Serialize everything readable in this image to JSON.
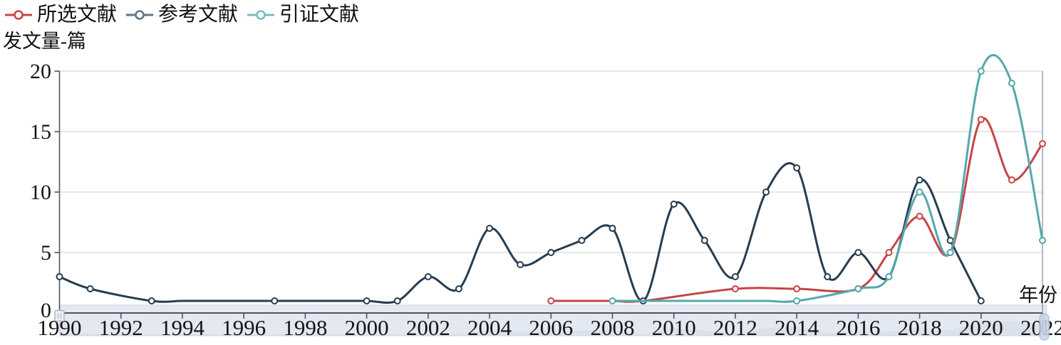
{
  "y_axis_title": "发文量-篇",
  "x_axis_title": "年份",
  "legend": {
    "items": [
      {
        "label": "所选文献",
        "marker_color": "#c84444"
      },
      {
        "label": "参考文献",
        "marker_color": "#5e7487"
      },
      {
        "label": "引证文献",
        "marker_color": "#79bcc1"
      }
    ]
  },
  "colors": {
    "red": "#c84444",
    "navy": "#263c50",
    "teal": "#55a7ad",
    "grid": "#d7dade",
    "axis": "#4f5560",
    "axis_light": "#8b919c",
    "text": "#141414",
    "band_fill": "#e4e8f0",
    "band_border": "#c9cfdc",
    "band_shadow": "#d4dae6",
    "handle_left_fill": "#eceff6",
    "handle_left_stroke": "#a9b2c4",
    "handle_right_fill": "#c9d5e7",
    "handle_right_stroke": "#a3b6d0"
  },
  "chart_data": {
    "type": "line",
    "title": "",
    "xlabel": "年份",
    "ylabel": "发文量-篇",
    "x_ticks": [
      1990,
      1992,
      1994,
      1996,
      1998,
      2000,
      2002,
      2004,
      2006,
      2008,
      2010,
      2012,
      2014,
      2016,
      2018,
      2020,
      2022
    ],
    "y_ticks": [
      0,
      5,
      10,
      15,
      20
    ],
    "xlim": [
      1990,
      2022
    ],
    "ylim": [
      0,
      20
    ],
    "grid": true,
    "smooth": true,
    "legend_position": "top-left",
    "series": [
      {
        "name": "所选文献",
        "color": "#c84444",
        "points": [
          {
            "year": 2006,
            "value": 1,
            "marker": true
          },
          {
            "year": 2007,
            "value": 1,
            "marker": false
          },
          {
            "year": 2008,
            "value": 1,
            "marker": false
          },
          {
            "year": 2009,
            "value": 1,
            "marker": false
          },
          {
            "year": 2012,
            "value": 2,
            "marker": true
          },
          {
            "year": 2014,
            "value": 2,
            "marker": true
          },
          {
            "year": 2016,
            "value": 2,
            "marker": true
          },
          {
            "year": 2017,
            "value": 5,
            "marker": true
          },
          {
            "year": 2018,
            "value": 8,
            "marker": true
          },
          {
            "year": 2019,
            "value": 5,
            "marker": true
          },
          {
            "year": 2020,
            "value": 16,
            "marker": true
          },
          {
            "year": 2021,
            "value": 11,
            "marker": true
          },
          {
            "year": 2022,
            "value": 14,
            "marker": true
          }
        ]
      },
      {
        "name": "参考文献",
        "color": "#263c50",
        "points": [
          {
            "year": 1990,
            "value": 3,
            "marker": true
          },
          {
            "year": 1991,
            "value": 2,
            "marker": true
          },
          {
            "year": 1993,
            "value": 1,
            "marker": true
          },
          {
            "year": 1994,
            "value": 1,
            "marker": false
          },
          {
            "year": 1995,
            "value": 1,
            "marker": false
          },
          {
            "year": 1996,
            "value": 1,
            "marker": false
          },
          {
            "year": 1997,
            "value": 1,
            "marker": true
          },
          {
            "year": 1998,
            "value": 1,
            "marker": false
          },
          {
            "year": 1999,
            "value": 1,
            "marker": false
          },
          {
            "year": 2000,
            "value": 1,
            "marker": true
          },
          {
            "year": 2001,
            "value": 1,
            "marker": true
          },
          {
            "year": 2002,
            "value": 3,
            "marker": true
          },
          {
            "year": 2003,
            "value": 2,
            "marker": true
          },
          {
            "year": 2004,
            "value": 7,
            "marker": true
          },
          {
            "year": 2005,
            "value": 4,
            "marker": true
          },
          {
            "year": 2006,
            "value": 5,
            "marker": true
          },
          {
            "year": 2007,
            "value": 6,
            "marker": true
          },
          {
            "year": 2008,
            "value": 7,
            "marker": true
          },
          {
            "year": 2009,
            "value": 1,
            "marker": true
          },
          {
            "year": 2010,
            "value": 9,
            "marker": true
          },
          {
            "year": 2011,
            "value": 6,
            "marker": true
          },
          {
            "year": 2012,
            "value": 3,
            "marker": true
          },
          {
            "year": 2013,
            "value": 10,
            "marker": true
          },
          {
            "year": 2014,
            "value": 12,
            "marker": true
          },
          {
            "year": 2015,
            "value": 3,
            "marker": true
          },
          {
            "year": 2016,
            "value": 5,
            "marker": true
          },
          {
            "year": 2017,
            "value": 3,
            "marker": true
          },
          {
            "year": 2018,
            "value": 11,
            "marker": true
          },
          {
            "year": 2019,
            "value": 6,
            "marker": true
          },
          {
            "year": 2020,
            "value": 1,
            "marker": true
          }
        ]
      },
      {
        "name": "引证文献",
        "color": "#55a7ad",
        "points": [
          {
            "year": 2008,
            "value": 1,
            "marker": true
          },
          {
            "year": 2009,
            "value": 1,
            "marker": false
          },
          {
            "year": 2010,
            "value": 1,
            "marker": false
          },
          {
            "year": 2011,
            "value": 1,
            "marker": false
          },
          {
            "year": 2012,
            "value": 1,
            "marker": false
          },
          {
            "year": 2013,
            "value": 1,
            "marker": false
          },
          {
            "year": 2014,
            "value": 1,
            "marker": true
          },
          {
            "year": 2016,
            "value": 2,
            "marker": true
          },
          {
            "year": 2017,
            "value": 3,
            "marker": true
          },
          {
            "year": 2018,
            "value": 10,
            "marker": true
          },
          {
            "year": 2019,
            "value": 5,
            "marker": true
          },
          {
            "year": 2020,
            "value": 20,
            "marker": true
          },
          {
            "year": 2021,
            "value": 19,
            "marker": true
          },
          {
            "year": 2022,
            "value": 6,
            "marker": true
          }
        ]
      }
    ],
    "slider": {
      "present": true,
      "handles": [
        "left",
        "right"
      ]
    }
  }
}
